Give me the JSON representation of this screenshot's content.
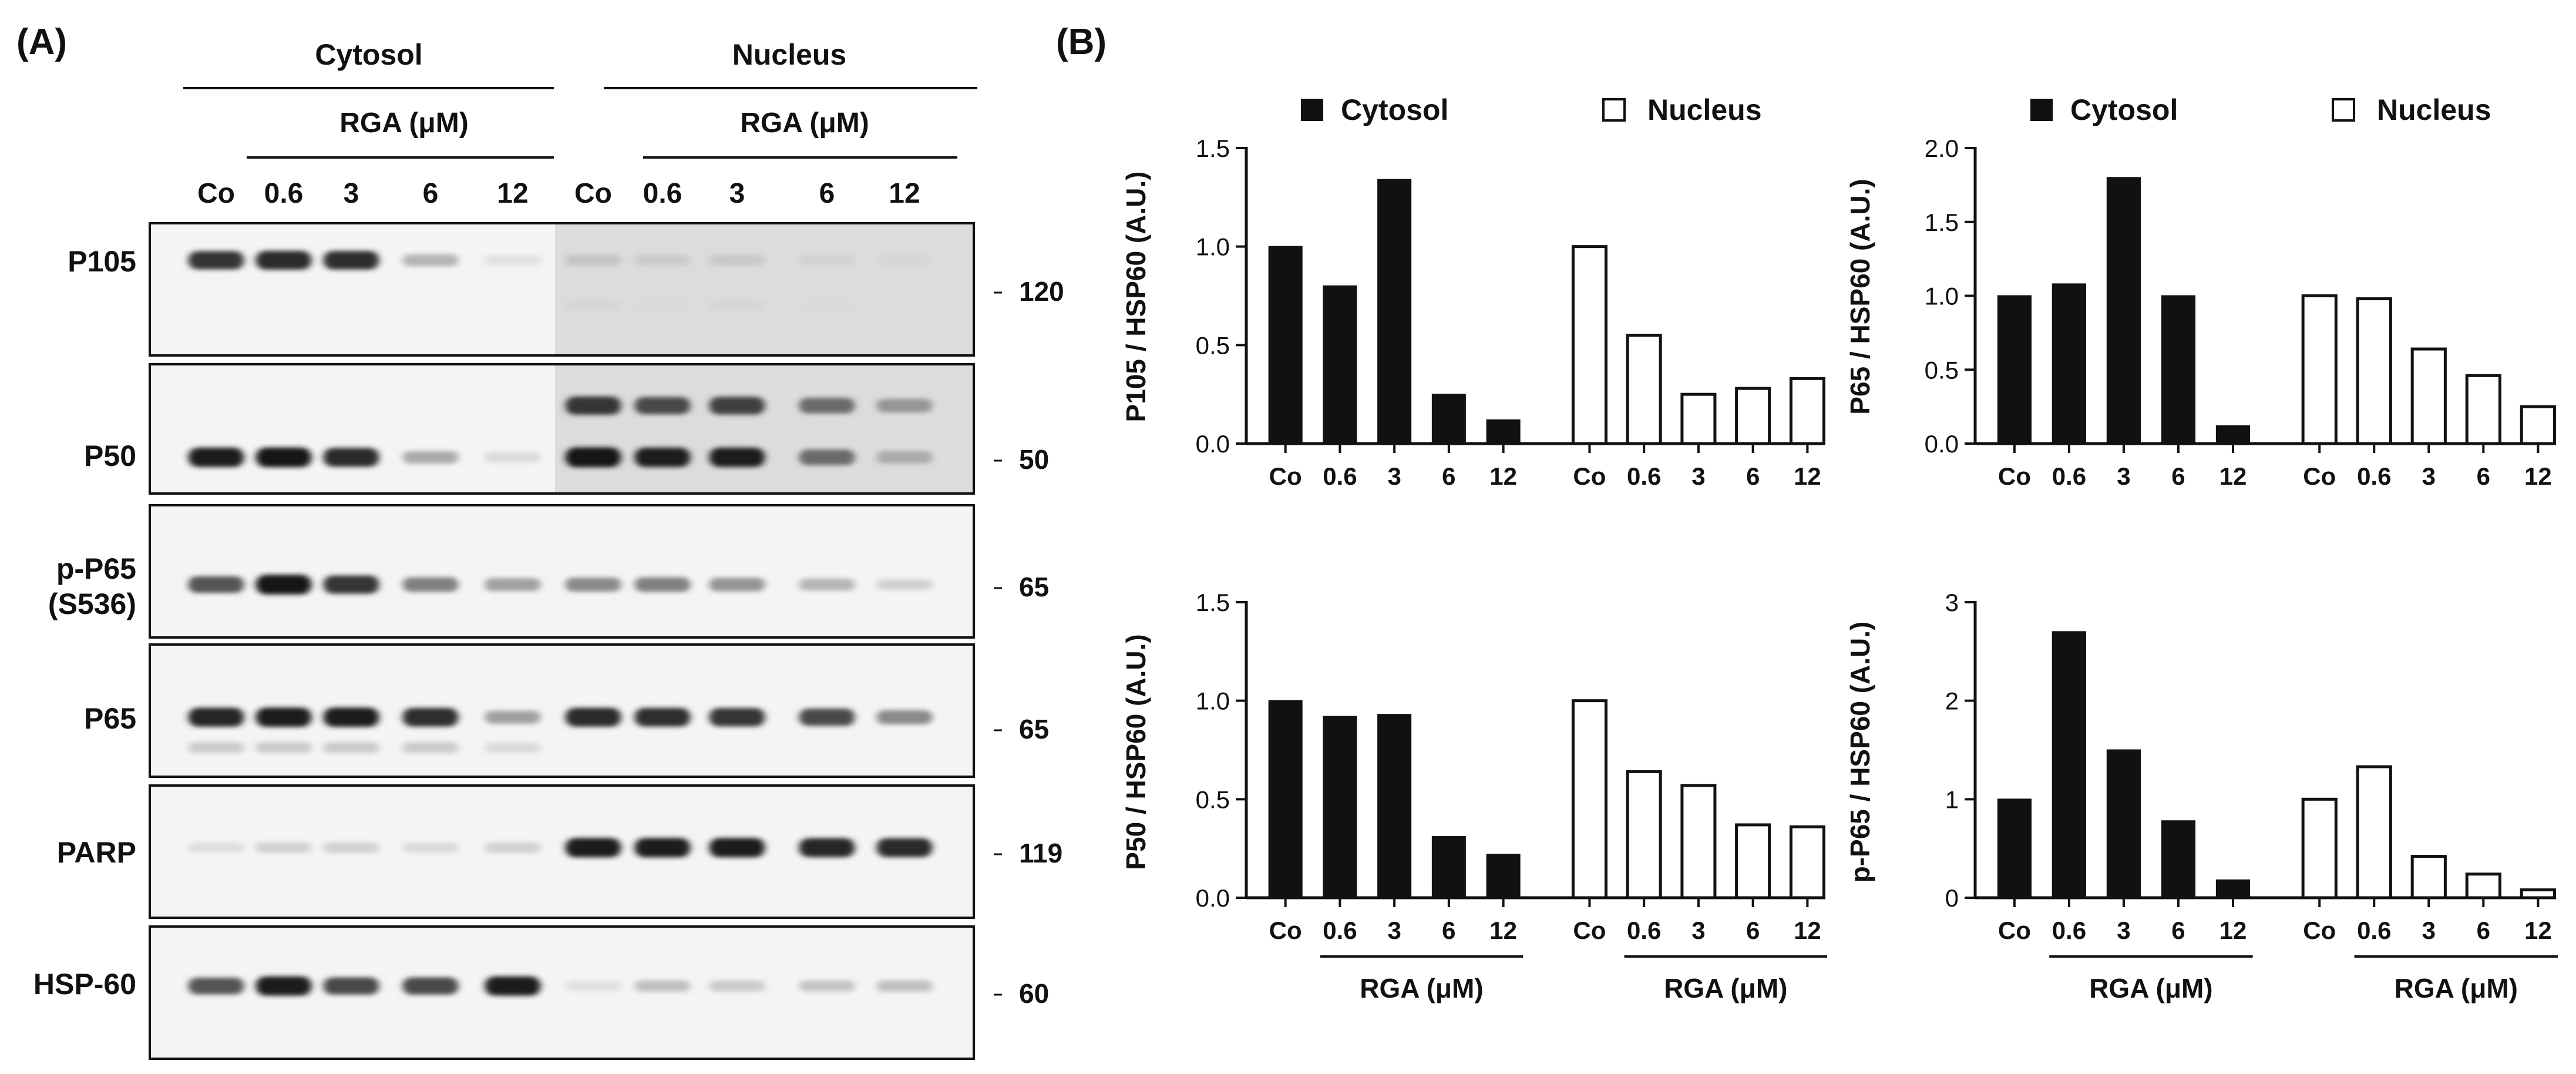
{
  "figure_panel_labels": [
    "(A)",
    "(B)"
  ],
  "blot": {
    "group_labels": [
      "Cytosol",
      "Nucleus"
    ],
    "treatment_label": "RGA  (μM)",
    "lane_labels": [
      "Co",
      "0.6",
      "3",
      "6",
      "12",
      "Co",
      "0.6",
      "3",
      "6",
      "12"
    ],
    "rows": [
      {
        "label": "P105",
        "label2": "",
        "marker": "120",
        "bands": [
          {
            "y": 0.28,
            "i": [
              0.85,
              0.9,
              0.88,
              0.25,
              0.05,
              0.18,
              0.15,
              0.16,
              0.12,
              0.1
            ]
          },
          {
            "y": 0.62,
            "i": [
              0,
              0,
              0,
              0,
              0,
              0.1,
              0.08,
              0.1,
              0.08,
              0.07
            ]
          }
        ]
      },
      {
        "label": "P50",
        "label2": "",
        "marker": "50",
        "bands": [
          {
            "y": 0.32,
            "i": [
              0,
              0,
              0,
              0,
              0,
              0.85,
              0.75,
              0.8,
              0.6,
              0.4
            ]
          },
          {
            "y": 0.72,
            "i": [
              0.95,
              0.98,
              0.9,
              0.3,
              0.08,
              1.0,
              0.95,
              0.95,
              0.6,
              0.3
            ]
          }
        ]
      },
      {
        "label": "p-P65",
        "label2": "(S536)",
        "marker": "65",
        "bands": [
          {
            "y": 0.6,
            "i": [
              0.7,
              0.98,
              0.85,
              0.5,
              0.35,
              0.45,
              0.5,
              0.4,
              0.25,
              0.12
            ]
          }
        ]
      },
      {
        "label": "P65",
        "label2": "",
        "marker": "65",
        "bands": [
          {
            "y": 0.55,
            "i": [
              0.92,
              0.95,
              0.95,
              0.88,
              0.35,
              0.9,
              0.88,
              0.85,
              0.75,
              0.45
            ]
          },
          {
            "y": 0.78,
            "i": [
              0.15,
              0.15,
              0.15,
              0.15,
              0.08,
              0,
              0,
              0,
              0,
              0
            ]
          }
        ]
      },
      {
        "label": "PARP",
        "label2": "",
        "marker": "119",
        "bands": [
          {
            "y": 0.47,
            "i": [
              0.06,
              0.12,
              0.12,
              0.08,
              0.12,
              0.95,
              0.95,
              0.95,
              0.92,
              0.9
            ]
          }
        ]
      },
      {
        "label": "HSP-60",
        "label2": "",
        "marker": "60",
        "bands": [
          {
            "y": 0.45,
            "i": [
              0.7,
              0.95,
              0.75,
              0.75,
              0.95,
              0.05,
              0.2,
              0.15,
              0.18,
              0.2
            ]
          }
        ]
      }
    ]
  },
  "legend": {
    "cytosol": "Cytosol",
    "nucleus": "Nucleus"
  },
  "chart_data": [
    {
      "type": "bar",
      "title": "",
      "ylabel": "P105 / HSP60 (A.U.)",
      "xlabel": "",
      "ylim": [
        0,
        1.5
      ],
      "yticks": [
        "0.0",
        "0.5",
        "1.0",
        "1.5"
      ],
      "categories": [
        "Co",
        "0.6",
        "3",
        "6",
        "12"
      ],
      "series": [
        {
          "name": "Cytosol",
          "values": [
            1.0,
            0.8,
            1.34,
            0.25,
            0.12
          ]
        },
        {
          "name": "Nucleus",
          "values": [
            1.0,
            0.55,
            0.25,
            0.28,
            0.33
          ]
        }
      ],
      "group_label": ""
    },
    {
      "type": "bar",
      "title": "",
      "ylabel": "P65 / HSP60 (A.U.)",
      "xlabel": "",
      "ylim": [
        0,
        2.0
      ],
      "yticks": [
        "0.0",
        "0.5",
        "1.0",
        "1.5",
        "2.0"
      ],
      "categories": [
        "Co",
        "0.6",
        "3",
        "6",
        "12"
      ],
      "series": [
        {
          "name": "Cytosol",
          "values": [
            1.0,
            1.08,
            1.8,
            1.0,
            0.12
          ]
        },
        {
          "name": "Nucleus",
          "values": [
            1.0,
            0.98,
            0.64,
            0.46,
            0.25
          ]
        }
      ],
      "group_label": ""
    },
    {
      "type": "bar",
      "title": "",
      "ylabel": "P50 / HSP60 (A.U.)",
      "xlabel": "",
      "ylim": [
        0,
        1.5
      ],
      "yticks": [
        "0.0",
        "0.5",
        "1.0",
        "1.5"
      ],
      "categories": [
        "Co",
        "0.6",
        "3",
        "6",
        "12"
      ],
      "series": [
        {
          "name": "Cytosol",
          "values": [
            1.0,
            0.92,
            0.93,
            0.31,
            0.22
          ]
        },
        {
          "name": "Nucleus",
          "values": [
            1.0,
            0.64,
            0.57,
            0.37,
            0.36
          ]
        }
      ],
      "group_label": "RGA  (μM)"
    },
    {
      "type": "bar",
      "title": "",
      "ylabel": "p-P65 / HSP60 (A.U.)",
      "xlabel": "",
      "ylim": [
        0,
        3
      ],
      "yticks": [
        "0",
        "1",
        "2",
        "3"
      ],
      "categories": [
        "Co",
        "0.6",
        "3",
        "6",
        "12"
      ],
      "series": [
        {
          "name": "Cytosol",
          "values": [
            1.0,
            2.7,
            1.5,
            0.78,
            0.18
          ]
        },
        {
          "name": "Nucleus",
          "values": [
            1.0,
            1.33,
            0.42,
            0.24,
            0.08
          ]
        }
      ],
      "group_label": "RGA  (μM)"
    }
  ]
}
